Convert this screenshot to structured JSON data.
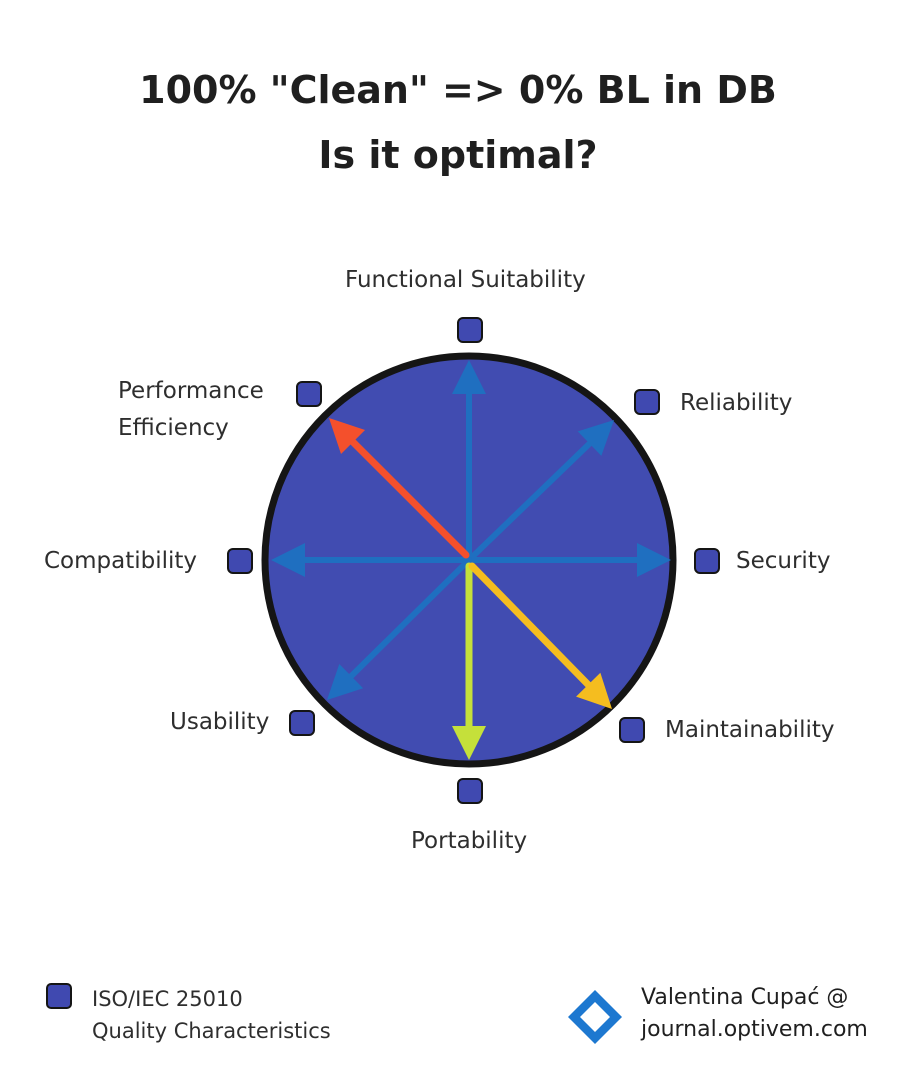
{
  "title": {
    "line1": "100% \"Clean\" => 0% BL in DB",
    "line2": "Is it optimal?"
  },
  "characteristics": [
    {
      "key": "functional",
      "label": "Functional Suitability",
      "arrow_color": "#1f6fc0"
    },
    {
      "key": "reliability",
      "label": "Reliability",
      "arrow_color": "#1f6fc0"
    },
    {
      "key": "security",
      "label": "Security",
      "arrow_color": "#1f6fc0"
    },
    {
      "key": "maintainability",
      "label": "Maintainability",
      "arrow_color": "#f5bd1f"
    },
    {
      "key": "portability",
      "label": "Portability",
      "arrow_color": "#c5e03a"
    },
    {
      "key": "usability",
      "label": "Usability",
      "arrow_color": "#1f6fc0"
    },
    {
      "key": "compatibility",
      "label": "Compatibility",
      "arrow_color": "#1f6fc0"
    },
    {
      "key": "performance",
      "label": "Performance\nEfficiency",
      "arrow_color": "#f4502c"
    }
  ],
  "colors": {
    "circle_fill": "#414cb1",
    "circle_border": "#151515",
    "marker_fill": "#4049b0",
    "logo": "#1d78d0"
  },
  "legend": {
    "icon": "square-marker-icon",
    "text": "ISO/IEC 25010\nQuality Characteristics"
  },
  "credit": {
    "icon": "optivem-logo-icon",
    "text": "Valentina Cupać @\njournal.optivem.com"
  }
}
